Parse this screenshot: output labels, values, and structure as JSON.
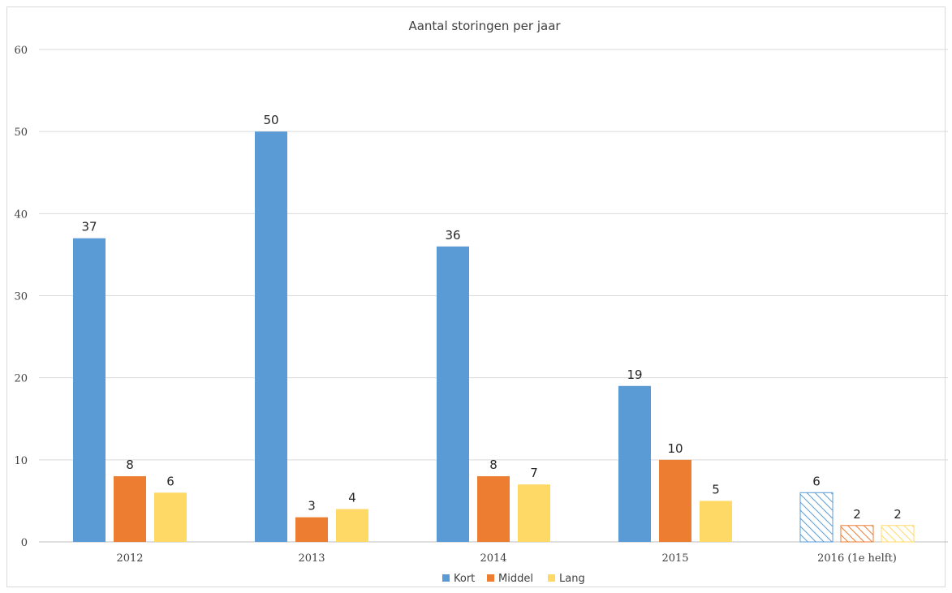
{
  "chart_data": {
    "type": "bar",
    "title": "Aantal storingen per jaar",
    "categories": [
      "2012",
      "2013",
      "2014",
      "2015",
      "2016 (1e helft)"
    ],
    "series": [
      {
        "name": "Kort",
        "color": "#5b9bd5",
        "values": [
          37,
          50,
          36,
          19,
          6
        ]
      },
      {
        "name": "Middel",
        "color": "#ed7d31",
        "values": [
          8,
          3,
          8,
          10,
          2
        ]
      },
      {
        "name": "Lang",
        "color": "#ffd966",
        "values": [
          6,
          4,
          7,
          5,
          2
        ]
      }
    ],
    "hatched_categories": [
      "2016 (1e helft)"
    ],
    "ylim": [
      0,
      60
    ],
    "yticks": [
      0,
      10,
      20,
      30,
      40,
      50,
      60
    ],
    "grid": true,
    "legend_position": "bottom",
    "data_labels": true
  }
}
